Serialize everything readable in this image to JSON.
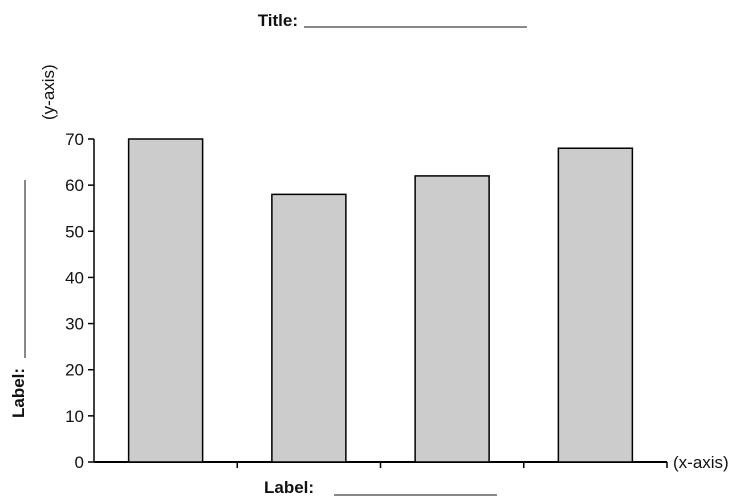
{
  "chart_data": {
    "type": "bar",
    "title_prefix": "Title:",
    "title": "",
    "xlabel_prefix": "Label:",
    "xlabel": "",
    "ylabel_prefix": "Label:",
    "ylabel": "",
    "x_axis_hint": "(x-axis)",
    "y_axis_hint": "(y-axis)",
    "categories": [
      "",
      "",
      "",
      ""
    ],
    "values": [
      70,
      58,
      62,
      68
    ],
    "ylim": [
      0,
      70
    ],
    "yticks": [
      0,
      10,
      20,
      30,
      40,
      50,
      60,
      70
    ],
    "bar_fill": "#cccccc",
    "bar_stroke": "#000000",
    "grid": false,
    "legend": "none"
  }
}
